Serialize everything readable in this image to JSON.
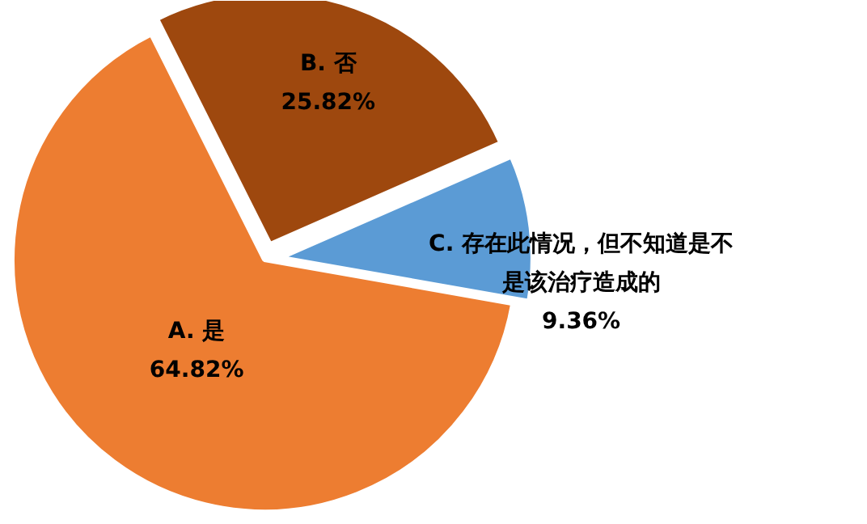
{
  "chart_data": {
    "type": "pie",
    "categories": [
      "A. 是",
      "B. 否",
      "C. 存在此情况，但不知道是不是该治疗造成的"
    ],
    "values": [
      64.82,
      25.82,
      9.36
    ],
    "colors": [
      "#ed7d31",
      "#9e480e",
      "#5b9bd5"
    ],
    "value_labels": [
      "64.82%",
      "25.82%",
      "9.36%"
    ]
  }
}
